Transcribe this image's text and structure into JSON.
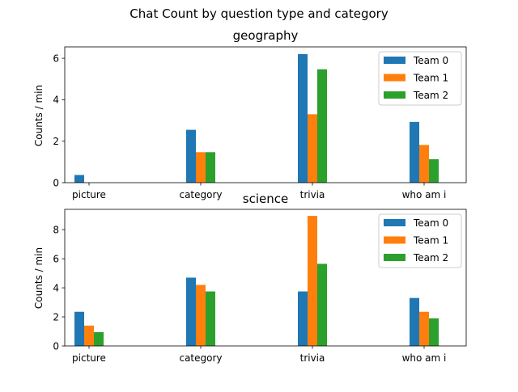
{
  "chart_data": {
    "type": "bar",
    "suptitle": "Chat Count by question type and category",
    "panels": [
      {
        "title": "geography",
        "ylabel": "Counts / min",
        "ylim": [
          0,
          6.55
        ],
        "yticks": [
          0,
          2,
          4,
          6
        ],
        "categories": [
          "picture",
          "category",
          "trivia",
          "who am i"
        ],
        "legend_position": "top-right",
        "series": [
          {
            "name": "Team 0",
            "color": "#1f77b4",
            "values": [
              0.37,
              2.55,
              6.2,
              2.93
            ]
          },
          {
            "name": "Team 1",
            "color": "#ff7f0e",
            "values": [
              0,
              1.47,
              3.3,
              1.82
            ]
          },
          {
            "name": "Team 2",
            "color": "#2ca02c",
            "values": [
              0,
              1.47,
              5.47,
              1.13
            ]
          }
        ]
      },
      {
        "title": "science",
        "ylabel": "Counts / min",
        "ylim": [
          0,
          9.4
        ],
        "yticks": [
          0,
          2,
          4,
          6,
          8
        ],
        "categories": [
          "picture",
          "category",
          "trivia",
          "who am i"
        ],
        "legend_position": "top-right",
        "series": [
          {
            "name": "Team 0",
            "color": "#1f77b4",
            "values": [
              2.35,
              4.7,
              3.75,
              3.3
            ]
          },
          {
            "name": "Team 1",
            "color": "#ff7f0e",
            "values": [
              1.4,
              4.2,
              8.95,
              2.35
            ]
          },
          {
            "name": "Team 2",
            "color": "#2ca02c",
            "values": [
              0.95,
              3.75,
              5.65,
              1.9
            ]
          }
        ]
      }
    ]
  }
}
